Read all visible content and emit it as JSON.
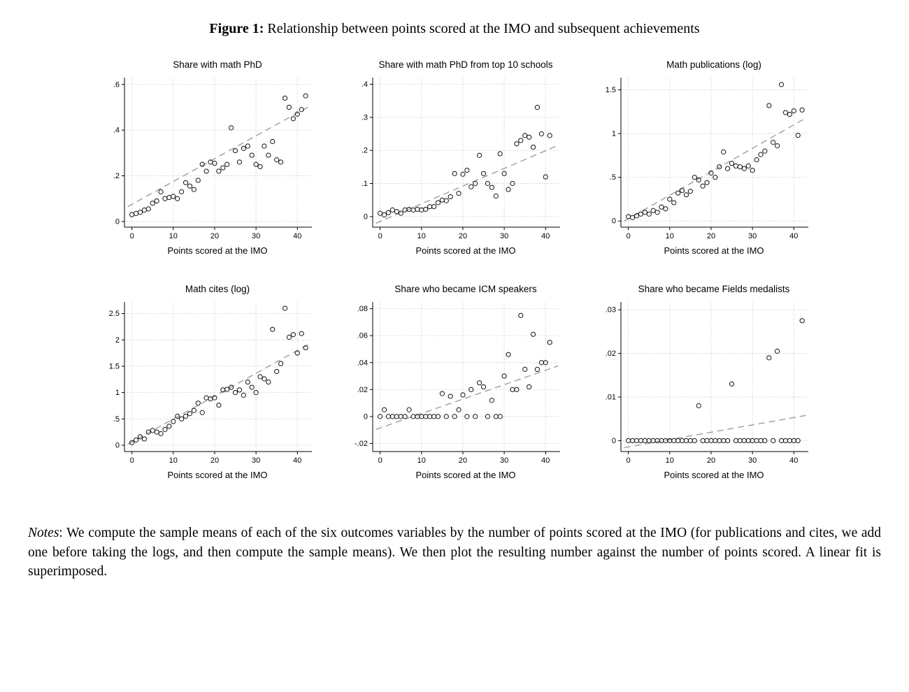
{
  "page": {
    "caption_label": "Figure 1:",
    "caption_text": " Relationship between points scored at the IMO and subsequent achievements",
    "notes_label": "Notes",
    "notes_text": ": We compute the sample means of each of the six outcomes variables by the number of points scored at the IMO (for publications and cites, we add one before taking the logs, and then compute the sample means). We then plot the resulting number against the number of points scored. A linear fit is superimposed."
  },
  "colors": {
    "point_stroke": "#151515",
    "fit_line": "#9e9e9e",
    "grid_line": "#b8b8b8",
    "axis": "#000000"
  },
  "chart_data": [
    {
      "type": "scatter",
      "title": "Share with math PhD",
      "xlabel": "Points scored at the IMO",
      "ylabel": "",
      "xlim": [
        -1.8,
        43.5
      ],
      "ylim": [
        -0.025,
        0.63
      ],
      "xticks": [
        {
          "v": 0,
          "label": "0"
        },
        {
          "v": 10,
          "label": "10"
        },
        {
          "v": 20,
          "label": "20"
        },
        {
          "v": 30,
          "label": "30"
        },
        {
          "v": 40,
          "label": "40"
        }
      ],
      "yticks": [
        {
          "v": 0,
          "label": "0"
        },
        {
          "v": 0.2,
          "label": ".2"
        },
        {
          "v": 0.4,
          "label": ".4"
        },
        {
          "v": 0.6,
          "label": ".6"
        }
      ],
      "fit": {
        "x0": -1,
        "y0": 0.065,
        "x1": 43,
        "y1": 0.505
      },
      "points": [
        [
          0,
          0.03
        ],
        [
          1,
          0.035
        ],
        [
          2,
          0.04
        ],
        [
          3,
          0.05
        ],
        [
          4,
          0.055
        ],
        [
          5,
          0.08
        ],
        [
          6,
          0.09
        ],
        [
          7,
          0.13
        ],
        [
          8,
          0.1
        ],
        [
          9,
          0.105
        ],
        [
          10,
          0.11
        ],
        [
          11,
          0.1
        ],
        [
          12,
          0.13
        ],
        [
          13,
          0.17
        ],
        [
          14,
          0.155
        ],
        [
          15,
          0.14
        ],
        [
          16,
          0.18
        ],
        [
          17,
          0.25
        ],
        [
          18,
          0.22
        ],
        [
          19,
          0.26
        ],
        [
          20,
          0.255
        ],
        [
          21,
          0.22
        ],
        [
          22,
          0.235
        ],
        [
          23,
          0.25
        ],
        [
          24,
          0.41
        ],
        [
          25,
          0.31
        ],
        [
          26,
          0.26
        ],
        [
          27,
          0.32
        ],
        [
          28,
          0.33
        ],
        [
          29,
          0.29
        ],
        [
          30,
          0.25
        ],
        [
          31,
          0.24
        ],
        [
          32,
          0.33
        ],
        [
          33,
          0.29
        ],
        [
          34,
          0.35
        ],
        [
          35,
          0.27
        ],
        [
          36,
          0.26
        ],
        [
          37,
          0.54
        ],
        [
          38,
          0.5
        ],
        [
          39,
          0.45
        ],
        [
          40,
          0.47
        ],
        [
          41,
          0.49
        ],
        [
          42,
          0.55
        ]
      ]
    },
    {
      "type": "scatter",
      "title": "Share with math PhD from top 10 schools",
      "xlabel": "Points scored at the IMO",
      "ylabel": "",
      "xlim": [
        -1.8,
        43.5
      ],
      "ylim": [
        -0.032,
        0.42
      ],
      "xticks": [
        {
          "v": 0,
          "label": "0"
        },
        {
          "v": 10,
          "label": "10"
        },
        {
          "v": 20,
          "label": "20"
        },
        {
          "v": 30,
          "label": "30"
        },
        {
          "v": 40,
          "label": "40"
        }
      ],
      "yticks": [
        {
          "v": 0,
          "label": "0"
        },
        {
          "v": 0.1,
          "label": ".1"
        },
        {
          "v": 0.2,
          "label": ".2"
        },
        {
          "v": 0.3,
          "label": ".3"
        },
        {
          "v": 0.4,
          "label": ".4"
        }
      ],
      "fit": {
        "x0": -1,
        "y0": -0.02,
        "x1": 43,
        "y1": 0.215
      },
      "points": [
        [
          0,
          0.01
        ],
        [
          1,
          0.005
        ],
        [
          2,
          0.012
        ],
        [
          3,
          0.02
        ],
        [
          4,
          0.015
        ],
        [
          5,
          0.01
        ],
        [
          6,
          0.02
        ],
        [
          7,
          0.022
        ],
        [
          8,
          0.02
        ],
        [
          9,
          0.022
        ],
        [
          10,
          0.02
        ],
        [
          11,
          0.022
        ],
        [
          12,
          0.03
        ],
        [
          13,
          0.03
        ],
        [
          14,
          0.042
        ],
        [
          15,
          0.05
        ],
        [
          16,
          0.048
        ],
        [
          17,
          0.06
        ],
        [
          18,
          0.13
        ],
        [
          19,
          0.07
        ],
        [
          20,
          0.128
        ],
        [
          21,
          0.14
        ],
        [
          22,
          0.09
        ],
        [
          23,
          0.1
        ],
        [
          24,
          0.185
        ],
        [
          25,
          0.13
        ],
        [
          26,
          0.1
        ],
        [
          27,
          0.088
        ],
        [
          28,
          0.062
        ],
        [
          29,
          0.19
        ],
        [
          30,
          0.13
        ],
        [
          31,
          0.082
        ],
        [
          32,
          0.1
        ],
        [
          33,
          0.22
        ],
        [
          34,
          0.23
        ],
        [
          35,
          0.245
        ],
        [
          36,
          0.24
        ],
        [
          37,
          0.21
        ],
        [
          38,
          0.33
        ],
        [
          39,
          0.25
        ],
        [
          40,
          0.12
        ],
        [
          41,
          0.245
        ]
      ]
    },
    {
      "type": "scatter",
      "title": "Math publications (log)",
      "xlabel": "Points scored at the IMO",
      "ylabel": "",
      "xlim": [
        -1.8,
        43.5
      ],
      "ylim": [
        -0.07,
        1.64
      ],
      "xticks": [
        {
          "v": 0,
          "label": "0"
        },
        {
          "v": 10,
          "label": "10"
        },
        {
          "v": 20,
          "label": "20"
        },
        {
          "v": 30,
          "label": "30"
        },
        {
          "v": 40,
          "label": "40"
        }
      ],
      "yticks": [
        {
          "v": 0,
          "label": "0"
        },
        {
          "v": 0.5,
          "label": ".5"
        },
        {
          "v": 1,
          "label": "1"
        },
        {
          "v": 1.5,
          "label": "1.5"
        }
      ],
      "fit": {
        "x0": -1,
        "y0": 0.0,
        "x1": 43,
        "y1": 1.18
      },
      "points": [
        [
          0,
          0.05
        ],
        [
          1,
          0.04
        ],
        [
          2,
          0.06
        ],
        [
          3,
          0.08
        ],
        [
          4,
          0.1
        ],
        [
          5,
          0.08
        ],
        [
          6,
          0.12
        ],
        [
          7,
          0.1
        ],
        [
          8,
          0.16
        ],
        [
          9,
          0.14
        ],
        [
          10,
          0.25
        ],
        [
          11,
          0.21
        ],
        [
          12,
          0.32
        ],
        [
          13,
          0.35
        ],
        [
          14,
          0.3
        ],
        [
          15,
          0.34
        ],
        [
          16,
          0.5
        ],
        [
          17,
          0.47
        ],
        [
          18,
          0.4
        ],
        [
          19,
          0.44
        ],
        [
          20,
          0.55
        ],
        [
          21,
          0.5
        ],
        [
          22,
          0.62
        ],
        [
          23,
          0.79
        ],
        [
          24,
          0.6
        ],
        [
          25,
          0.66
        ],
        [
          26,
          0.63
        ],
        [
          27,
          0.62
        ],
        [
          28,
          0.6
        ],
        [
          29,
          0.63
        ],
        [
          30,
          0.58
        ],
        [
          31,
          0.7
        ],
        [
          32,
          0.76
        ],
        [
          33,
          0.8
        ],
        [
          34,
          1.32
        ],
        [
          35,
          0.9
        ],
        [
          36,
          0.86
        ],
        [
          37,
          1.56
        ],
        [
          38,
          1.24
        ],
        [
          39,
          1.22
        ],
        [
          40,
          1.26
        ],
        [
          41,
          0.98
        ],
        [
          42,
          1.27
        ]
      ]
    },
    {
      "type": "scatter",
      "title": "Math cites (log)",
      "xlabel": "Points scored at the IMO",
      "ylabel": "",
      "xlim": [
        -1.8,
        43.5
      ],
      "ylim": [
        -0.12,
        2.72
      ],
      "xticks": [
        {
          "v": 0,
          "label": "0"
        },
        {
          "v": 10,
          "label": "10"
        },
        {
          "v": 20,
          "label": "20"
        },
        {
          "v": 30,
          "label": "30"
        },
        {
          "v": 40,
          "label": "40"
        }
      ],
      "yticks": [
        {
          "v": 0,
          "label": "0"
        },
        {
          "v": 0.5,
          "label": ".5"
        },
        {
          "v": 1,
          "label": "1"
        },
        {
          "v": 1.5,
          "label": "1.5"
        },
        {
          "v": 2,
          "label": "2"
        },
        {
          "v": 2.5,
          "label": "2.5"
        }
      ],
      "fit": {
        "x0": -1,
        "y0": 0.02,
        "x1": 43,
        "y1": 1.93
      },
      "points": [
        [
          0,
          0.05
        ],
        [
          1,
          0.1
        ],
        [
          2,
          0.16
        ],
        [
          3,
          0.12
        ],
        [
          4,
          0.25
        ],
        [
          5,
          0.28
        ],
        [
          6,
          0.25
        ],
        [
          7,
          0.22
        ],
        [
          8,
          0.3
        ],
        [
          9,
          0.36
        ],
        [
          10,
          0.45
        ],
        [
          11,
          0.55
        ],
        [
          12,
          0.5
        ],
        [
          13,
          0.55
        ],
        [
          14,
          0.6
        ],
        [
          15,
          0.66
        ],
        [
          16,
          0.8
        ],
        [
          17,
          0.62
        ],
        [
          18,
          0.9
        ],
        [
          19,
          0.88
        ],
        [
          20,
          0.9
        ],
        [
          21,
          0.76
        ],
        [
          22,
          1.05
        ],
        [
          23,
          1.06
        ],
        [
          24,
          1.1
        ],
        [
          25,
          1.0
        ],
        [
          26,
          1.05
        ],
        [
          27,
          0.95
        ],
        [
          28,
          1.2
        ],
        [
          29,
          1.1
        ],
        [
          30,
          1.0
        ],
        [
          31,
          1.3
        ],
        [
          32,
          1.26
        ],
        [
          33,
          1.2
        ],
        [
          34,
          2.2
        ],
        [
          35,
          1.4
        ],
        [
          36,
          1.55
        ],
        [
          37,
          2.6
        ],
        [
          38,
          2.05
        ],
        [
          39,
          2.1
        ],
        [
          40,
          1.75
        ],
        [
          41,
          2.12
        ],
        [
          42,
          1.85
        ]
      ]
    },
    {
      "type": "scatter",
      "title": "Share who became ICM speakers",
      "xlabel": "Points scored at the IMO",
      "ylabel": "",
      "xlim": [
        -1.8,
        43.5
      ],
      "ylim": [
        -0.026,
        0.085
      ],
      "xticks": [
        {
          "v": 0,
          "label": "0"
        },
        {
          "v": 10,
          "label": "10"
        },
        {
          "v": 20,
          "label": "20"
        },
        {
          "v": 30,
          "label": "30"
        },
        {
          "v": 40,
          "label": "40"
        }
      ],
      "yticks": [
        {
          "v": -0.02,
          "label": "-.02"
        },
        {
          "v": 0,
          "label": "0"
        },
        {
          "v": 0.02,
          "label": ".02"
        },
        {
          "v": 0.04,
          "label": ".04"
        },
        {
          "v": 0.06,
          "label": ".06"
        },
        {
          "v": 0.08,
          "label": ".08"
        }
      ],
      "fit": {
        "x0": -1,
        "y0": -0.0095,
        "x1": 43,
        "y1": 0.0375
      },
      "points": [
        [
          0,
          0
        ],
        [
          1,
          0.005
        ],
        [
          2,
          0
        ],
        [
          3,
          0
        ],
        [
          4,
          0
        ],
        [
          5,
          0
        ],
        [
          6,
          0
        ],
        [
          7,
          0.005
        ],
        [
          8,
          0
        ],
        [
          9,
          0
        ],
        [
          10,
          0
        ],
        [
          11,
          0
        ],
        [
          12,
          0
        ],
        [
          13,
          0
        ],
        [
          14,
          0
        ],
        [
          15,
          0.017
        ],
        [
          16,
          0
        ],
        [
          17,
          0.015
        ],
        [
          18,
          0
        ],
        [
          19,
          0.005
        ],
        [
          20,
          0.016
        ],
        [
          21,
          0
        ],
        [
          22,
          0.02
        ],
        [
          23,
          0
        ],
        [
          24,
          0.025
        ],
        [
          25,
          0.022
        ],
        [
          26,
          0
        ],
        [
          27,
          0.012
        ],
        [
          28,
          0
        ],
        [
          29,
          0
        ],
        [
          30,
          0.03
        ],
        [
          31,
          0.046
        ],
        [
          32,
          0.02
        ],
        [
          33,
          0.02
        ],
        [
          34,
          0.075
        ],
        [
          35,
          0.035
        ],
        [
          36,
          0.022
        ],
        [
          37,
          0.061
        ],
        [
          38,
          0.035
        ],
        [
          39,
          0.04
        ],
        [
          40,
          0.04
        ],
        [
          41,
          0.055
        ]
      ]
    },
    {
      "type": "scatter",
      "title": "Share who became Fields medalists",
      "xlabel": "Points scored at the IMO",
      "ylabel": "",
      "xlim": [
        -1.8,
        43.5
      ],
      "ylim": [
        -0.0025,
        0.0318
      ],
      "xticks": [
        {
          "v": 0,
          "label": "0"
        },
        {
          "v": 10,
          "label": "10"
        },
        {
          "v": 20,
          "label": "20"
        },
        {
          "v": 30,
          "label": "30"
        },
        {
          "v": 40,
          "label": "40"
        }
      ],
      "yticks": [
        {
          "v": 0,
          "label": "0"
        },
        {
          "v": 0.01,
          "label": ".01"
        },
        {
          "v": 0.02,
          "label": ".02"
        },
        {
          "v": 0.03,
          "label": ".03"
        }
      ],
      "fit": {
        "x0": -1,
        "y0": -0.0016,
        "x1": 43,
        "y1": 0.0058
      },
      "points": [
        [
          0,
          0
        ],
        [
          1,
          0
        ],
        [
          2,
          0
        ],
        [
          3,
          0
        ],
        [
          4,
          0
        ],
        [
          5,
          0
        ],
        [
          6,
          0
        ],
        [
          7,
          0
        ],
        [
          8,
          0
        ],
        [
          9,
          0
        ],
        [
          10,
          0
        ],
        [
          11,
          0
        ],
        [
          12,
          0
        ],
        [
          13,
          0
        ],
        [
          14,
          0
        ],
        [
          15,
          0
        ],
        [
          16,
          0
        ],
        [
          17,
          0.008
        ],
        [
          18,
          0
        ],
        [
          19,
          0
        ],
        [
          20,
          0
        ],
        [
          21,
          0
        ],
        [
          22,
          0
        ],
        [
          23,
          0
        ],
        [
          24,
          0
        ],
        [
          25,
          0.013
        ],
        [
          26,
          0
        ],
        [
          27,
          0
        ],
        [
          28,
          0
        ],
        [
          29,
          0
        ],
        [
          30,
          0
        ],
        [
          31,
          0
        ],
        [
          32,
          0
        ],
        [
          33,
          0
        ],
        [
          34,
          0.019
        ],
        [
          35,
          0
        ],
        [
          36,
          0.0205
        ],
        [
          37,
          0
        ],
        [
          38,
          0
        ],
        [
          39,
          0
        ],
        [
          40,
          0
        ],
        [
          41,
          0
        ],
        [
          42,
          0.0275
        ]
      ]
    }
  ]
}
